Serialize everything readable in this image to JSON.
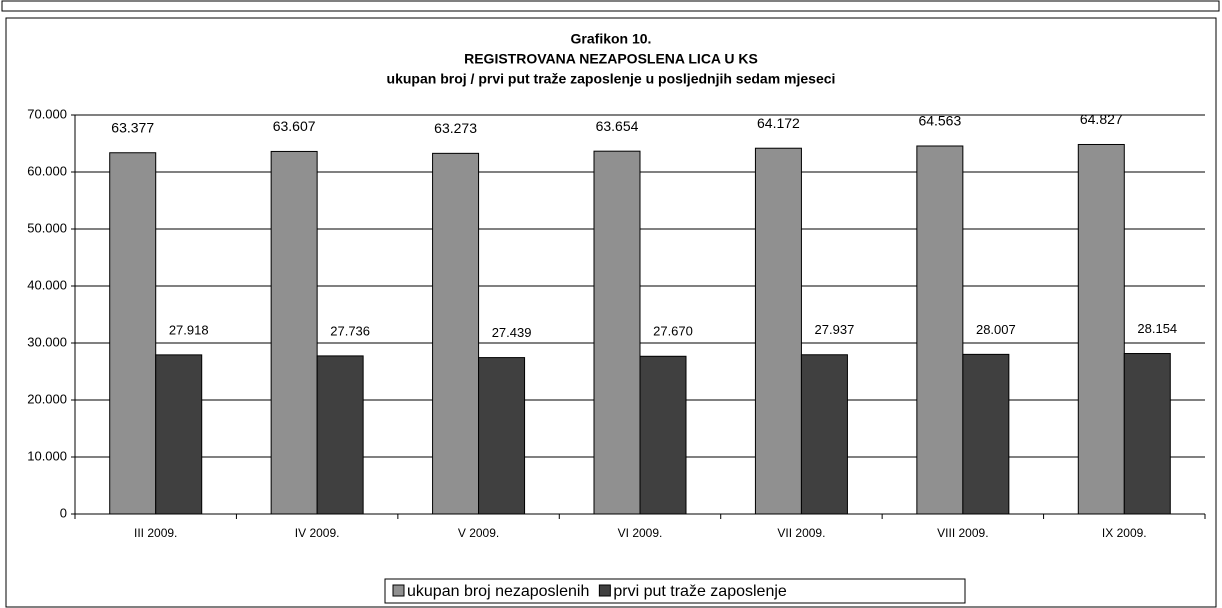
{
  "chart_data": {
    "type": "bar",
    "title": [
      "Grafikon 10.",
      "REGISTROVANA NEZAPOSLENA LICA U KS",
      "ukupan broj / prvi put traže zaposlenje u posljednjih sedam mjeseci"
    ],
    "categories": [
      "III 2009.",
      "IV 2009.",
      "V 2009.",
      "VI 2009.",
      "VII 2009.",
      "VIII 2009.",
      "IX 2009."
    ],
    "series": [
      {
        "name": "ukupan broj nezaposlenih",
        "color": "#909090",
        "values": [
          63377,
          63607,
          63273,
          63654,
          64172,
          64563,
          64827
        ],
        "value_labels": [
          "63.377",
          "63.607",
          "63.273",
          "63.654",
          "64.172",
          "64.563",
          "64.827"
        ]
      },
      {
        "name": "prvi put traže zaposlenje",
        "color": "#404040",
        "values": [
          27918,
          27736,
          27439,
          27670,
          27937,
          28007,
          28154
        ],
        "value_labels": [
          "27.918",
          "27.736",
          "27.439",
          "27.670",
          "27.937",
          "28.007",
          "28.154"
        ]
      }
    ],
    "ylim": [
      0,
      70000
    ],
    "yticks": [
      0,
      {
        "value": 10000,
        "label": "10.000"
      },
      {
        "value": 20000,
        "label": "20.000"
      },
      {
        "value": 30000,
        "label": "30.000"
      },
      {
        "value": 40000,
        "label": "40.000"
      },
      {
        "value": 50000,
        "label": "50.000"
      },
      {
        "value": 60000,
        "label": "60.000"
      },
      {
        "value": 70000,
        "label": "70.000"
      }
    ],
    "grid": true,
    "legend": "bottom"
  }
}
